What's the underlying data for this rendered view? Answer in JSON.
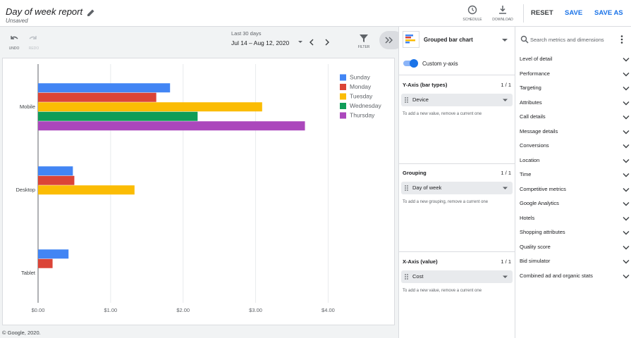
{
  "header": {
    "title": "Day of week report",
    "status": "Unsaved",
    "actions": [
      "SCHEDULE",
      "DOWNLOAD"
    ],
    "buttons": [
      "RESET",
      "SAVE",
      "SAVE AS"
    ]
  },
  "toolbar": {
    "undo": "UNDO",
    "redo": "REDO",
    "range_label": "Last 30 days",
    "range": "Jul 14 – Aug 12, 2020",
    "filter": "FILTER"
  },
  "chart_data": {
    "type": "bar",
    "orientation": "horizontal",
    "categories": [
      "Mobile",
      "Desktop",
      "Tablet"
    ],
    "series": [
      {
        "name": "Sunday",
        "color": "#4285f4",
        "values": [
          1.82,
          0.48,
          0.42
        ]
      },
      {
        "name": "Monday",
        "color": "#db4437",
        "values": [
          1.63,
          0.5,
          0.2
        ]
      },
      {
        "name": "Tuesday",
        "color": "#fbbc04",
        "values": [
          3.09,
          1.33,
          null
        ]
      },
      {
        "name": "Wednesday",
        "color": "#0f9d58",
        "values": [
          2.2,
          null,
          null
        ]
      },
      {
        "name": "Thursday",
        "color": "#ab47bc",
        "values": [
          3.68,
          null,
          null
        ]
      }
    ],
    "xlim": [
      0,
      4.9
    ],
    "xticks": [
      {
        "value": 0,
        "label": "$0.00"
      },
      {
        "value": 1,
        "label": "$1.00"
      },
      {
        "value": 2,
        "label": "$2.00"
      },
      {
        "value": 3,
        "label": "$3.00"
      },
      {
        "value": 4,
        "label": "$4.00"
      }
    ],
    "grid": true,
    "legend": "top-right"
  },
  "footer": "© Google, 2020.",
  "config": {
    "chart_type": "Grouped bar chart",
    "toggle": "Custom y-axis",
    "sections": [
      {
        "title": "Y-Axis (bar types)",
        "count": "1 / 1",
        "chip": "Device",
        "hint": "To add a new value, remove a current one"
      },
      {
        "title": "Grouping",
        "count": "1 / 1",
        "chip": "Day of week",
        "hint": "To add a new grouping, remove a current one"
      },
      {
        "title": "X-Axis (value)",
        "count": "1 / 1",
        "chip": "Cost",
        "hint": "To add a new value, remove a current one"
      }
    ]
  },
  "sidebar": {
    "search": "Search metrics and dimensions",
    "items": [
      "Level of detail",
      "Performance",
      "Targeting",
      "Attributes",
      "Call details",
      "Message details",
      "Conversions",
      "Location",
      "Time",
      "Competitive metrics",
      "Google Analytics",
      "Hotels",
      "Shopping attributes",
      "Quality score",
      "Bid simulator",
      "Combined ad and organic stats"
    ]
  }
}
